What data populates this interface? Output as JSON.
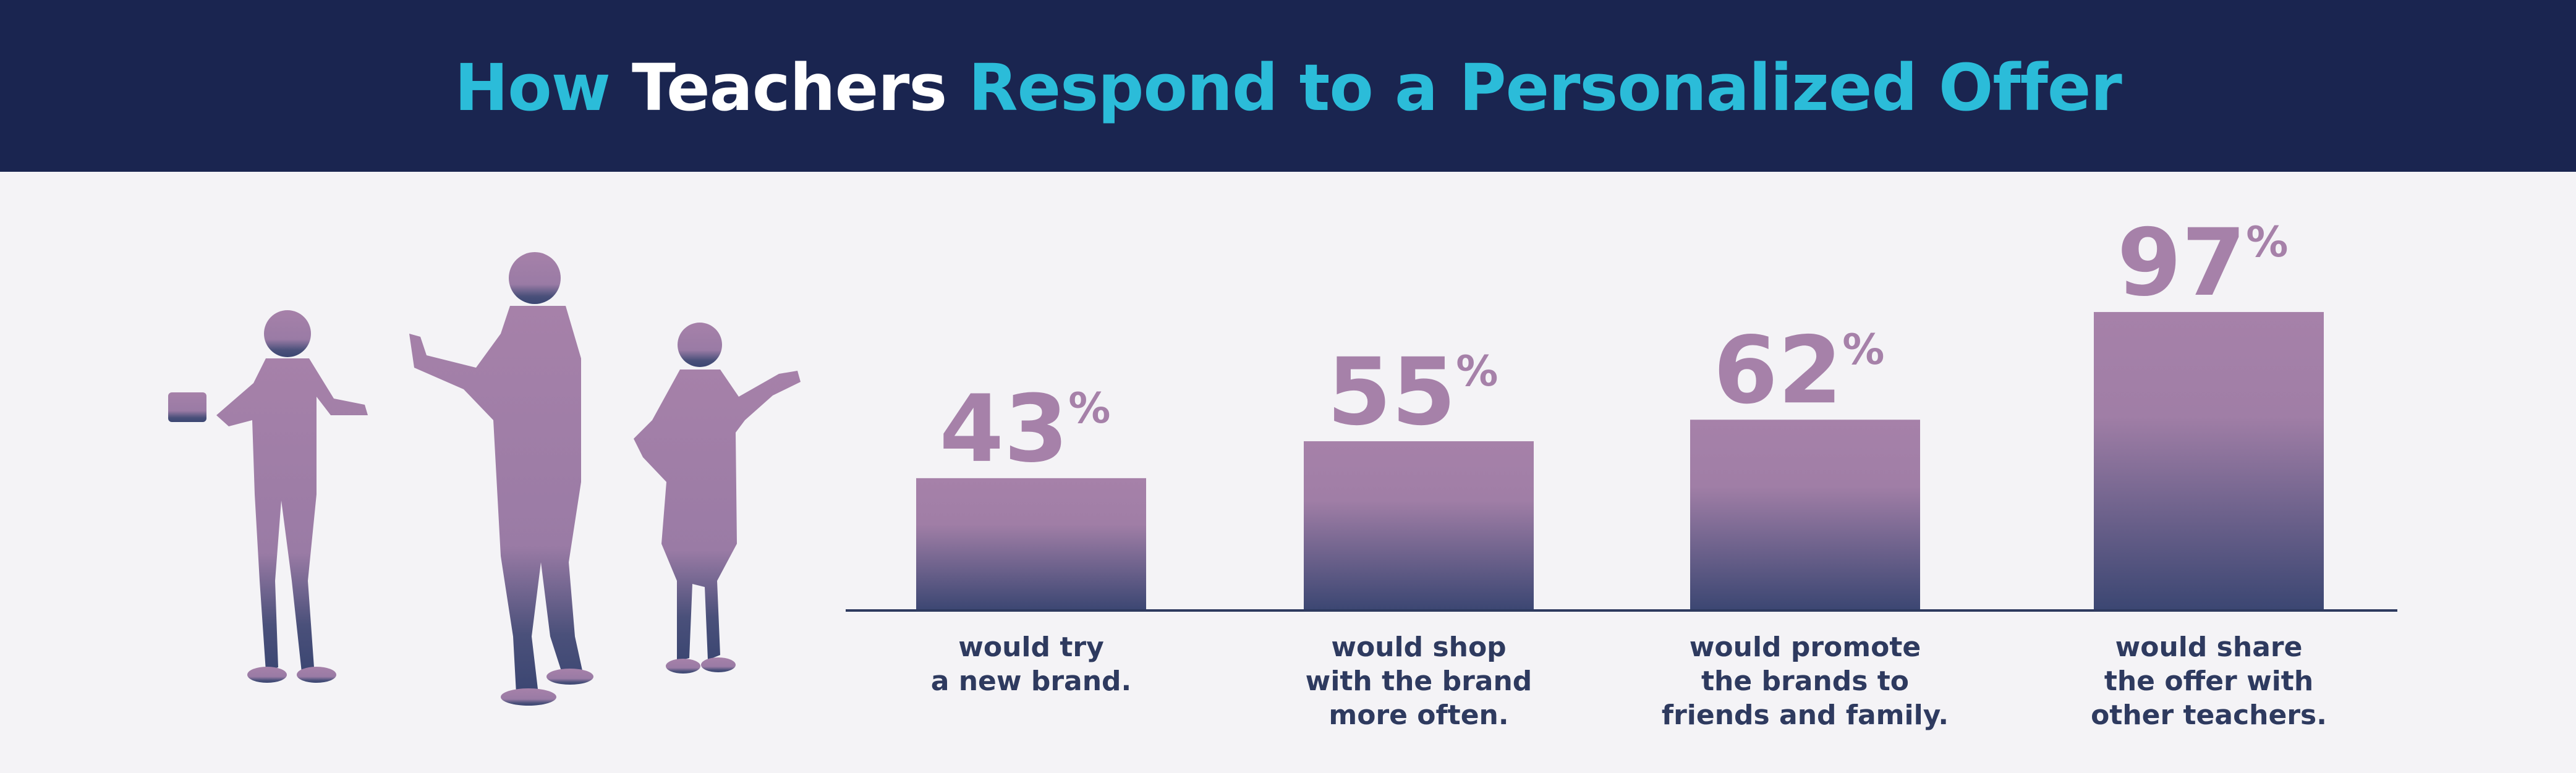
{
  "header": {
    "title_part1": "How ",
    "title_part2": "Teachers",
    "title_part3": " Respond to a Personalized Offer",
    "bg_color": "#1a2550",
    "accent_color": "#2bbcd9"
  },
  "illustration": {
    "icon": "teacher-silhouettes-icon",
    "count": 3
  },
  "chart_data": {
    "type": "bar",
    "categories": [
      "would try a new brand.",
      "would shop with the brand more often.",
      "would promote the brands to friends and family.",
      "would share the offer with other teachers."
    ],
    "label_lines": [
      [
        "would try",
        "a new brand."
      ],
      [
        "would shop",
        "with the brand",
        "more often."
      ],
      [
        "would promote",
        "the brands to",
        "friends and family."
      ],
      [
        "would share",
        "the offer with",
        "other teachers."
      ]
    ],
    "values": [
      43,
      55,
      62,
      97
    ],
    "value_labels": [
      "43",
      "55",
      "62",
      "97"
    ],
    "unit": "%",
    "ylim": [
      0,
      100
    ],
    "grid": false,
    "colors": {
      "bar_top": "#a681a9",
      "bar_bottom": "#3b4672",
      "axis": "#2e3a5f",
      "value_text": "#a681a9",
      "label_text": "#2e3a5f"
    }
  }
}
